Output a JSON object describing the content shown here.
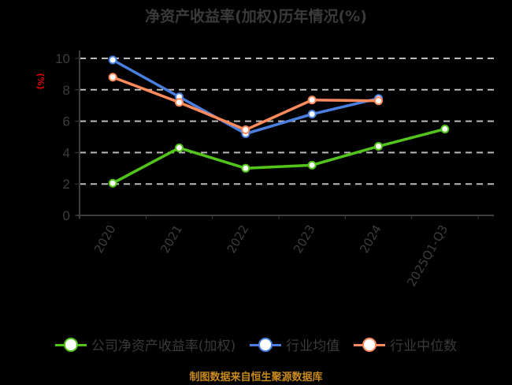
{
  "title": "净资产收益率(加权)历年情况(%)",
  "unit_label": "(%)",
  "source": "制图数据来自恒生聚源数据库",
  "colors": {
    "company": "#52c41a",
    "industry_avg": "#4a7fe0",
    "industry_median": "#ff8a5c",
    "grid": "#bbbbbb",
    "axis": "#3d3d3d",
    "unit": "#e00000",
    "source": "#c8891c"
  },
  "legend": [
    {
      "label": "公司净资产收益率(加权)",
      "color": "#52c41a"
    },
    {
      "label": "行业均值",
      "color": "#4a7fe0"
    },
    {
      "label": "行业中位数",
      "color": "#ff8a5c"
    }
  ],
  "chart_data": {
    "type": "line",
    "title": "净资产收益率(加权)历年情况(%)",
    "xlabel": "",
    "ylabel": "(%)",
    "categories": [
      "2020",
      "2021",
      "2022",
      "2023",
      "2024",
      "2025Q1-Q3"
    ],
    "y_ticks": [
      "0",
      "2",
      "4",
      "6",
      "8",
      "10"
    ],
    "ylim": [
      0,
      10
    ],
    "grid": true,
    "legend_position": "bottom",
    "series": [
      {
        "name": "公司净资产收益率(加权)",
        "values": [
          2.05,
          4.3,
          3.0,
          3.2,
          4.4,
          5.5
        ]
      },
      {
        "name": "行业均值",
        "values": [
          9.9,
          7.55,
          5.2,
          6.45,
          7.45,
          null
        ]
      },
      {
        "name": "行业中位数",
        "values": [
          8.8,
          7.2,
          5.45,
          7.35,
          7.3,
          null
        ]
      }
    ]
  }
}
